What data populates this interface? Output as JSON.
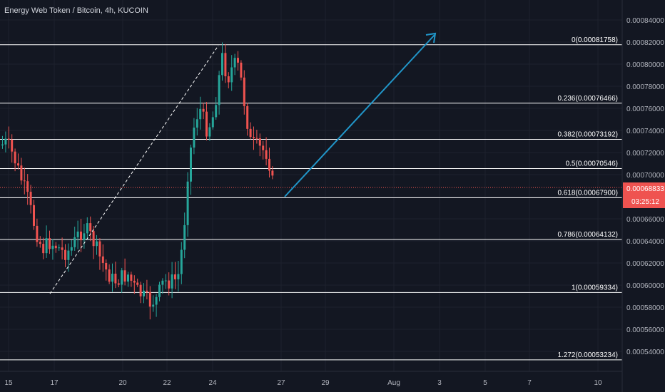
{
  "chart_data": {
    "type": "candlestick",
    "title": "Energy Web Token / Bitcoin, 4h, KUCOIN",
    "ylim": [
      0.00052,
      0.00085
    ],
    "y_ticks": [
      "0.00054000",
      "0.00056000",
      "0.00058000",
      "0.00060000",
      "0.00062000",
      "0.00064000",
      "0.00066000",
      "0.00068000",
      "0.00070000",
      "0.00072000",
      "0.00074000",
      "0.00076000",
      "0.00078000",
      "0.00080000",
      "0.00082000",
      "0.00084000"
    ],
    "x_ticks": [
      "15",
      "17",
      "20",
      "22",
      "24",
      "27",
      "29",
      "Aug",
      "3",
      "5",
      "7",
      "10"
    ],
    "last_price": "0.00068833",
    "countdown": "03:25:12",
    "fib_levels": [
      {
        "label": "0(0.00081758)",
        "value": 0.00081758
      },
      {
        "label": "0.236(0.00076466)",
        "value": 0.00076466
      },
      {
        "label": "0.382(0.00073192)",
        "value": 0.00073192
      },
      {
        "label": "0.5(0.00070546)",
        "value": 0.00070546
      },
      {
        "label": "0.618(0.00067900)",
        "value": 0.000679
      },
      {
        "label": "0.786(0.00064132)",
        "value": 0.00064132
      },
      {
        "label": "1(0.00059334)",
        "value": 0.00059334
      },
      {
        "label": "1.272(0.00053234)",
        "value": 0.00053234
      }
    ],
    "colors": {
      "up": "#26a69a",
      "down": "#ef5350",
      "arrow": "#2196c9",
      "fib": "#ffffff",
      "price_line": "#ef5350"
    }
  }
}
